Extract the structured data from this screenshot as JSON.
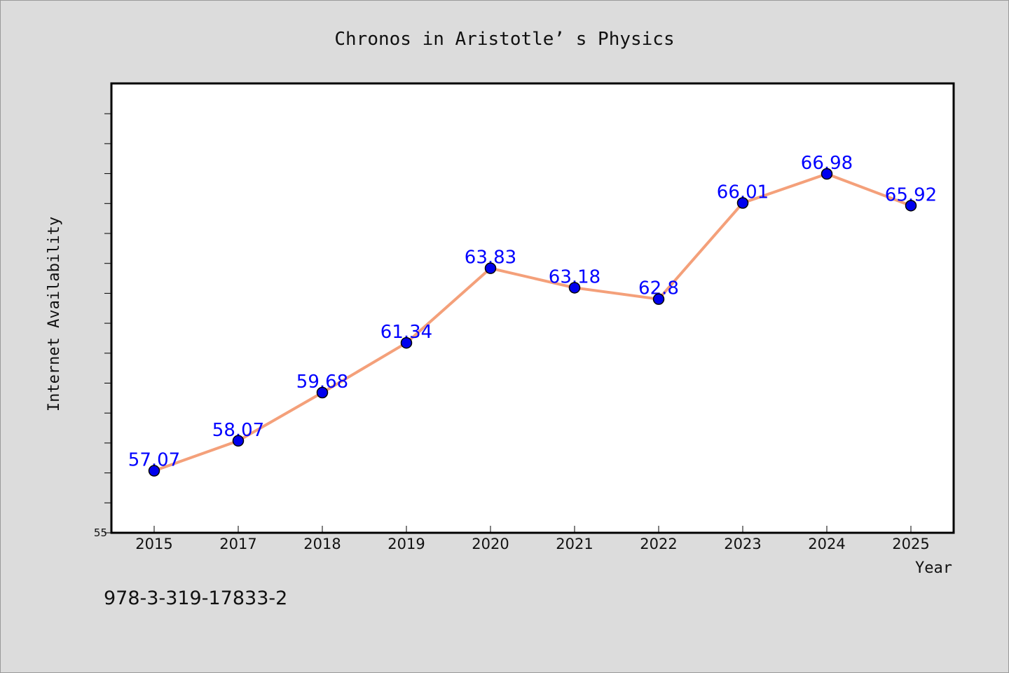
{
  "chart_data": {
    "type": "line",
    "title": "Chronos in Aristotle’ s Physics",
    "xlabel": "Year",
    "ylabel": "Internet Availability",
    "categories": [
      "2015",
      "2017",
      "2018",
      "2019",
      "2020",
      "2021",
      "2022",
      "2023",
      "2024",
      "2025"
    ],
    "series": [
      {
        "values": [
          57.07,
          58.07,
          59.68,
          61.34,
          63.83,
          63.18,
          62.8,
          66.01,
          66.98,
          65.92
        ],
        "labels": [
          "57.07",
          "58.07",
          "59.68",
          "61.34",
          "63.83",
          "63.18",
          "62.8",
          "66.01",
          "66.98",
          "65.92"
        ],
        "line_color": "#f4a07a",
        "marker_color": "#0000ee",
        "label_color": "#0000ff"
      }
    ],
    "ylim": [
      55,
      70
    ],
    "ytick_labels": [
      "55"
    ],
    "grid": false,
    "legend": "none"
  },
  "footer": {
    "isbn": "978-3-319-17833-2"
  }
}
